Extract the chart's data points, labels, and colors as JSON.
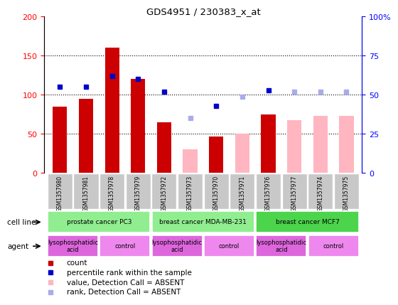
{
  "title": "GDS4951 / 230383_x_at",
  "samples": [
    "GSM1357980",
    "GSM1357981",
    "GSM1357978",
    "GSM1357979",
    "GSM1357972",
    "GSM1357973",
    "GSM1357970",
    "GSM1357971",
    "GSM1357976",
    "GSM1357977",
    "GSM1357974",
    "GSM1357975"
  ],
  "count_present": [
    85,
    95,
    160,
    120,
    65,
    null,
    47,
    null,
    75,
    null,
    null,
    null
  ],
  "count_absent": [
    null,
    null,
    null,
    null,
    null,
    30,
    null,
    50,
    null,
    68,
    73,
    73
  ],
  "rank_present": [
    55,
    55,
    62,
    60,
    52,
    null,
    43,
    null,
    53,
    null,
    null,
    null
  ],
  "rank_absent": [
    null,
    null,
    null,
    null,
    null,
    35,
    null,
    49,
    null,
    52,
    52,
    52
  ],
  "ylim_left": [
    0,
    200
  ],
  "ylim_right": [
    0,
    100
  ],
  "left_ticks": [
    0,
    50,
    100,
    150,
    200
  ],
  "right_ticks": [
    0,
    25,
    50,
    75,
    100
  ],
  "right_labels": [
    "0",
    "25",
    "50",
    "75",
    "100%"
  ],
  "count_color": "#CC0000",
  "count_absent_color": "#FFB6C1",
  "rank_color": "#0000CC",
  "rank_absent_color": "#AAAAEE",
  "cell_line_groups": [
    {
      "label": "prostate cancer PC3",
      "start": 0,
      "end": 3,
      "color": "#90EE90"
    },
    {
      "label": "breast cancer MDA-MB-231",
      "start": 4,
      "end": 7,
      "color": "#90EE90"
    },
    {
      "label": "breast cancer MCF7",
      "start": 8,
      "end": 11,
      "color": "#4CD44C"
    }
  ],
  "agent_blocks": [
    {
      "start": 0,
      "end": 1,
      "color": "#DD66DD",
      "label": "lysophosphatidic\nacid"
    },
    {
      "start": 2,
      "end": 3,
      "color": "#EE88EE",
      "label": "control"
    },
    {
      "start": 4,
      "end": 5,
      "color": "#DD66DD",
      "label": "lysophosphatidic\nacid"
    },
    {
      "start": 6,
      "end": 7,
      "color": "#EE88EE",
      "label": "control"
    },
    {
      "start": 8,
      "end": 9,
      "color": "#DD66DD",
      "label": "lysophosphatidic\nacid"
    },
    {
      "start": 10,
      "end": 11,
      "color": "#EE88EE",
      "label": "control"
    }
  ],
  "bar_width": 0.55
}
